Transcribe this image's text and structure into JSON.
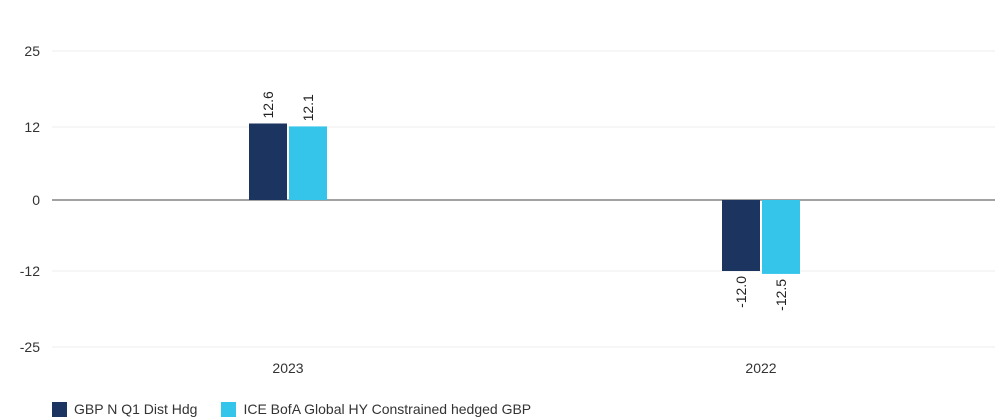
{
  "chart_data": {
    "type": "bar",
    "categories": [
      "2023",
      "2022"
    ],
    "series": [
      {
        "name": "GBP N Q1 Dist Hdg",
        "values": [
          12.6,
          -12.0
        ],
        "color": "#1b3560"
      },
      {
        "name": "ICE BofA Global HY Constrained hedged GBP",
        "values": [
          12.1,
          -12.5
        ],
        "color": "#35c5ea"
      }
    ],
    "yticks": [
      25,
      12,
      0,
      -12,
      -25
    ],
    "ylim": [
      -25,
      25
    ],
    "grid": true,
    "legend_position": "bottom-left",
    "data_labels": [
      [
        "12.6",
        "-12.0"
      ],
      [
        "12.1",
        "-12.5"
      ]
    ]
  }
}
